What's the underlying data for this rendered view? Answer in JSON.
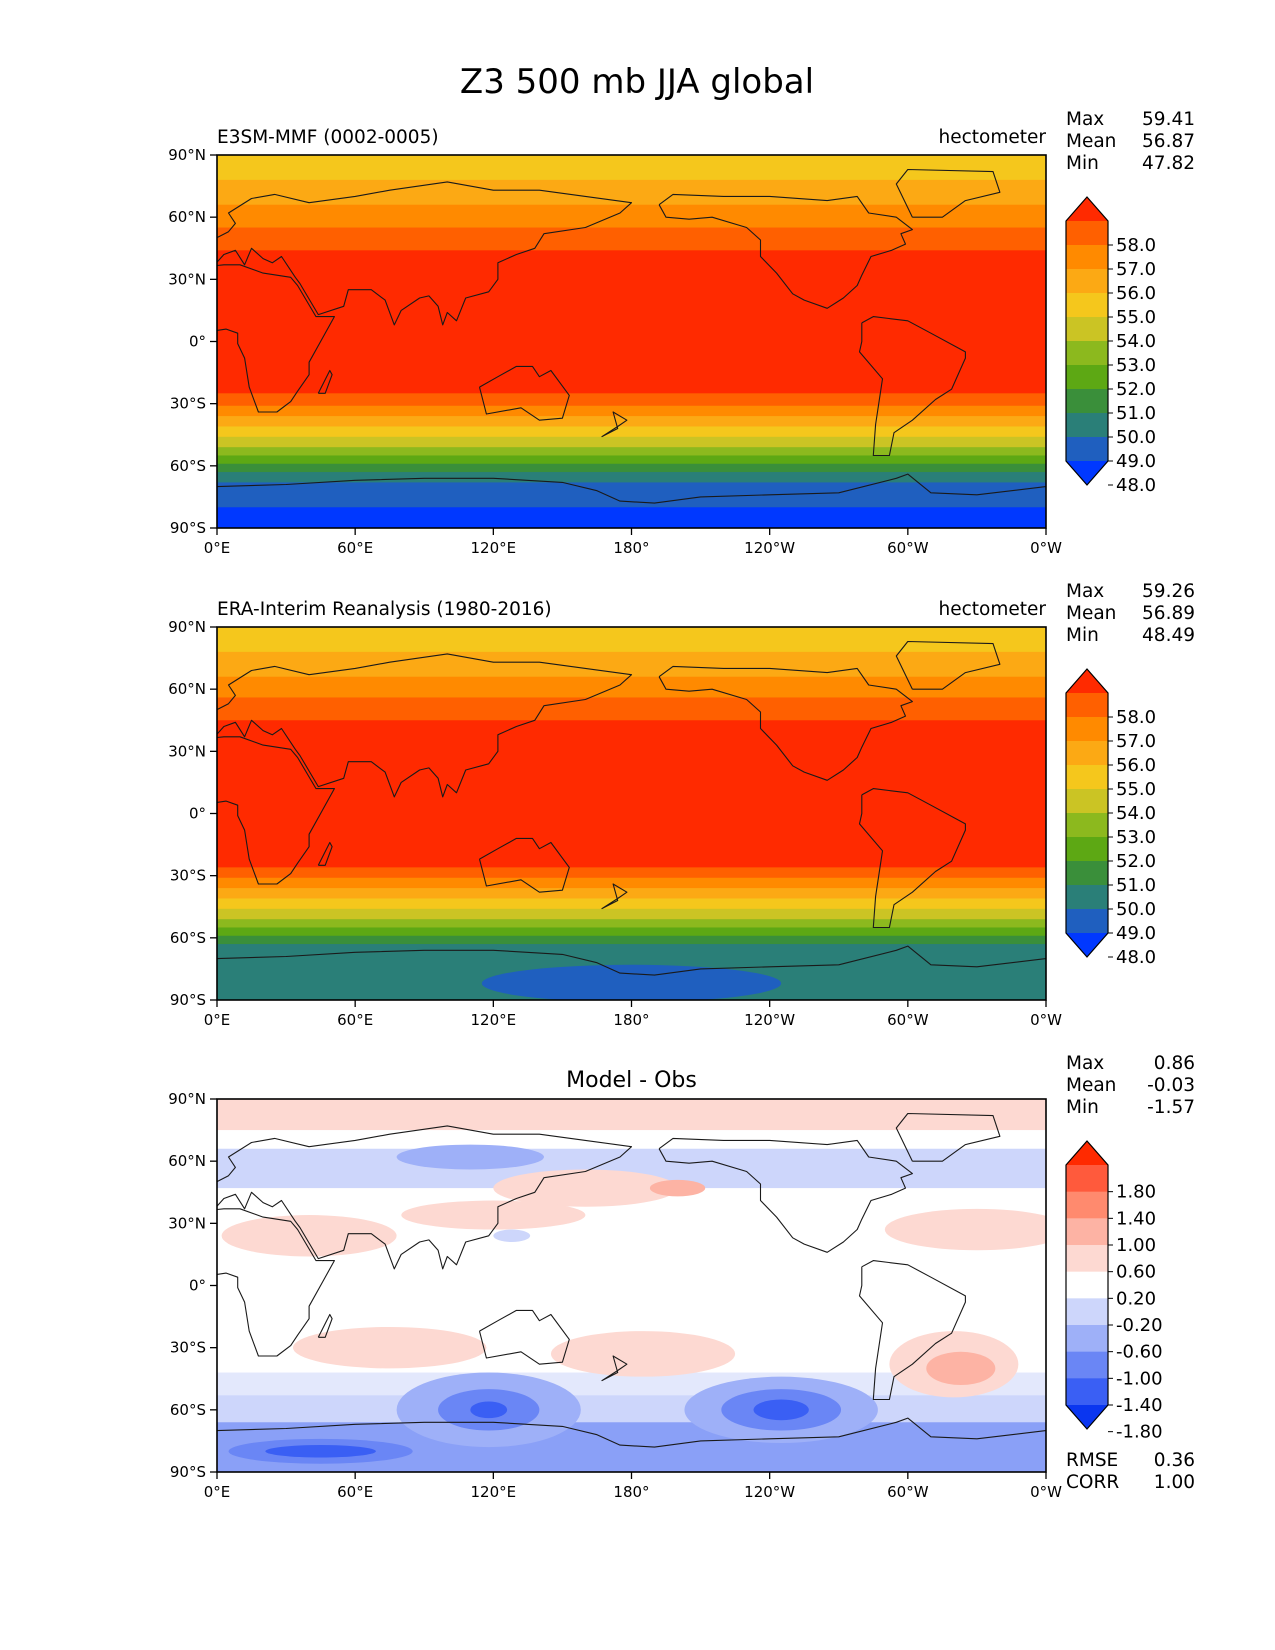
{
  "figure": {
    "title": "Z3 500 mb JJA global"
  },
  "panels": [
    {
      "name": "test",
      "left_title": "E3SM-MMF (0002-0005)",
      "center_title": "",
      "units": "hectometer",
      "stats": {
        "Max": "59.41",
        "Mean": "56.87",
        "Min": "47.82"
      },
      "stat_labels": [
        "Max",
        "Mean",
        "Min"
      ],
      "colorbar": {
        "labels": [
          "58.0",
          "57.0",
          "56.0",
          "55.0",
          "54.0",
          "53.0",
          "52.0",
          "51.0",
          "50.0",
          "49.0",
          "48.0"
        ],
        "colors_top_to_bottom": [
          "#ff2a00",
          "#ff6000",
          "#ff8a00",
          "#fca914",
          "#f5c71c",
          "#cbc424",
          "#8cb91e",
          "#5da814",
          "#3a8f3a",
          "#2a7f78",
          "#1f5fbf",
          "#0038ff"
        ]
      },
      "field": {
        "type": "zonal-band-contour",
        "lat_bands_north_to_south": [
          {
            "lat_from": 90,
            "lat_to": 78,
            "color": "#f5c71c"
          },
          {
            "lat_from": 78,
            "lat_to": 66,
            "color": "#fca914"
          },
          {
            "lat_from": 66,
            "lat_to": 55,
            "color": "#ff8a00"
          },
          {
            "lat_from": 55,
            "lat_to": 44,
            "color": "#ff6000"
          },
          {
            "lat_from": 44,
            "lat_to": -25,
            "color": "#ff2a00"
          },
          {
            "lat_from": -25,
            "lat_to": -31,
            "color": "#ff6000"
          },
          {
            "lat_from": -31,
            "lat_to": -36,
            "color": "#ff8a00"
          },
          {
            "lat_from": -36,
            "lat_to": -41,
            "color": "#fca914"
          },
          {
            "lat_from": -41,
            "lat_to": -46,
            "color": "#f5c71c"
          },
          {
            "lat_from": -46,
            "lat_to": -51,
            "color": "#cbc424"
          },
          {
            "lat_from": -51,
            "lat_to": -55,
            "color": "#8cb91e"
          },
          {
            "lat_from": -55,
            "lat_to": -59,
            "color": "#5da814"
          },
          {
            "lat_from": -59,
            "lat_to": -63,
            "color": "#3a8f3a"
          },
          {
            "lat_from": -63,
            "lat_to": -68,
            "color": "#2a7f78"
          },
          {
            "lat_from": -68,
            "lat_to": -80,
            "color": "#1f5fbf"
          },
          {
            "lat_from": -80,
            "lat_to": -90,
            "color": "#0038ff"
          }
        ]
      },
      "extra": []
    },
    {
      "name": "reference",
      "left_title": "ERA-Interim Reanalysis (1980-2016)",
      "center_title": "",
      "units": "hectometer",
      "stats": {
        "Max": "59.26",
        "Mean": "56.89",
        "Min": "48.49"
      },
      "stat_labels": [
        "Max",
        "Mean",
        "Min"
      ],
      "colorbar": {
        "labels": [
          "58.0",
          "57.0",
          "56.0",
          "55.0",
          "54.0",
          "53.0",
          "52.0",
          "51.0",
          "50.0",
          "49.0",
          "48.0"
        ],
        "colors_top_to_bottom": [
          "#ff2a00",
          "#ff6000",
          "#ff8a00",
          "#fca914",
          "#f5c71c",
          "#cbc424",
          "#8cb91e",
          "#5da814",
          "#3a8f3a",
          "#2a7f78",
          "#1f5fbf",
          "#0038ff"
        ]
      },
      "field": {
        "type": "zonal-band-contour",
        "lat_bands_north_to_south": [
          {
            "lat_from": 90,
            "lat_to": 78,
            "color": "#f5c71c"
          },
          {
            "lat_from": 78,
            "lat_to": 66,
            "color": "#fca914"
          },
          {
            "lat_from": 66,
            "lat_to": 56,
            "color": "#ff8a00"
          },
          {
            "lat_from": 56,
            "lat_to": 45,
            "color": "#ff6000"
          },
          {
            "lat_from": 45,
            "lat_to": -26,
            "color": "#ff2a00"
          },
          {
            "lat_from": -26,
            "lat_to": -31,
            "color": "#ff6000"
          },
          {
            "lat_from": -31,
            "lat_to": -36,
            "color": "#ff8a00"
          },
          {
            "lat_from": -36,
            "lat_to": -41,
            "color": "#fca914"
          },
          {
            "lat_from": -41,
            "lat_to": -46,
            "color": "#f5c71c"
          },
          {
            "lat_from": -46,
            "lat_to": -51,
            "color": "#cbc424"
          },
          {
            "lat_from": -51,
            "lat_to": -55,
            "color": "#8cb91e"
          },
          {
            "lat_from": -55,
            "lat_to": -59,
            "color": "#5da814"
          },
          {
            "lat_from": -59,
            "lat_to": -63,
            "color": "#3a8f3a"
          },
          {
            "lat_from": -63,
            "lat_to": -90,
            "color": "#2a7f78"
          }
        ]
      },
      "extra": [
        {
          "kind": "blob",
          "lon": 180,
          "lat": -82,
          "dlon": 65,
          "dlat": 9,
          "color": "#1f5fbf"
        }
      ]
    },
    {
      "name": "difference",
      "left_title": "",
      "center_title": "Model - Obs",
      "units": "",
      "stats": {
        "Max": "0.86",
        "Mean": "-0.03",
        "Min": "-1.57"
      },
      "stat_labels": [
        "Max",
        "Mean",
        "Min"
      ],
      "footer_labels": [
        "RMSE",
        "CORR"
      ],
      "footer": {
        "RMSE": "0.36",
        "CORR": "1.00"
      },
      "colorbar": {
        "labels": [
          "1.80",
          "1.40",
          "1.00",
          "0.60",
          "0.20",
          "-0.20",
          "-0.60",
          "-1.00",
          "-1.40",
          "-1.80"
        ],
        "colors_top_to_bottom": [
          "#ff2a00",
          "#ff5a3c",
          "#ff8a6e",
          "#fdb3a4",
          "#fdd9d2",
          "#ffffff",
          "#cdd6fb",
          "#9eb0f8",
          "#6a86f5",
          "#3a5ff4",
          "#0a36f0"
        ]
      },
      "field": {
        "type": "anomaly-blobs",
        "lat_bands_north_to_south": [
          {
            "lat_from": 90,
            "lat_to": 75,
            "color": "#fdd9d2"
          },
          {
            "lat_from": 75,
            "lat_to": 66,
            "color": "#ffffff"
          },
          {
            "lat_from": 66,
            "lat_to": 47,
            "color": "#cdd6fb"
          },
          {
            "lat_from": 47,
            "lat_to": -42,
            "color": "#ffffff"
          },
          {
            "lat_from": -42,
            "lat_to": -53,
            "color": "#e3e8fc"
          },
          {
            "lat_from": -53,
            "lat_to": -66,
            "color": "#cdd6fb"
          },
          {
            "lat_from": -66,
            "lat_to": -90,
            "color": "#8aa0f7"
          }
        ]
      },
      "extra": [
        {
          "kind": "blob",
          "lon": 110,
          "lat": 62,
          "dlon": 32,
          "dlat": 6,
          "color": "#9eb0f8"
        },
        {
          "kind": "blob",
          "lon": 160,
          "lat": 47,
          "dlon": 40,
          "dlat": 9,
          "color": "#fdd9d2"
        },
        {
          "kind": "blob",
          "lon": 200,
          "lat": 47,
          "dlon": 12,
          "dlat": 4,
          "color": "#fdb3a4"
        },
        {
          "kind": "blob",
          "lon": 40,
          "lat": 24,
          "dlon": 38,
          "dlat": 10,
          "color": "#fdd9d2"
        },
        {
          "kind": "blob",
          "lon": 120,
          "lat": 34,
          "dlon": 40,
          "dlat": 7,
          "color": "#fdd9d2"
        },
        {
          "kind": "blob",
          "lon": 128,
          "lat": 24,
          "dlon": 8,
          "dlat": 3,
          "color": "#cdd6fb"
        },
        {
          "kind": "blob",
          "lon": 330,
          "lat": 27,
          "dlon": 40,
          "dlat": 10,
          "color": "#fdd9d2"
        },
        {
          "kind": "blob",
          "lon": 75,
          "lat": -30,
          "dlon": 42,
          "dlat": 10,
          "color": "#fdd9d2"
        },
        {
          "kind": "blob",
          "lon": 185,
          "lat": -33,
          "dlon": 40,
          "dlat": 11,
          "color": "#fdd9d2"
        },
        {
          "kind": "blob",
          "lon": 320,
          "lat": -38,
          "dlon": 28,
          "dlat": 16,
          "color": "#fdd9d2"
        },
        {
          "kind": "blob",
          "lon": 323,
          "lat": -40,
          "dlon": 15,
          "dlat": 8,
          "color": "#fdb3a4"
        },
        {
          "kind": "blob",
          "lon": 118,
          "lat": -60,
          "dlon": 40,
          "dlat": 18,
          "color": "#9eb0f8"
        },
        {
          "kind": "blob",
          "lon": 118,
          "lat": -60,
          "dlon": 22,
          "dlat": 10,
          "color": "#6a86f5"
        },
        {
          "kind": "blob",
          "lon": 118,
          "lat": -60,
          "dlon": 8,
          "dlat": 4,
          "color": "#3a5ff4"
        },
        {
          "kind": "blob",
          "lon": 245,
          "lat": -60,
          "dlon": 42,
          "dlat": 16,
          "color": "#9eb0f8"
        },
        {
          "kind": "blob",
          "lon": 245,
          "lat": -60,
          "dlon": 26,
          "dlat": 10,
          "color": "#6a86f5"
        },
        {
          "kind": "blob",
          "lon": 245,
          "lat": -60,
          "dlon": 12,
          "dlat": 5,
          "color": "#3a5ff4"
        },
        {
          "kind": "blob",
          "lon": 45,
          "lat": -80,
          "dlon": 40,
          "dlat": 6,
          "color": "#6a86f5"
        },
        {
          "kind": "blob",
          "lon": 45,
          "lat": -80,
          "dlon": 24,
          "dlat": 3,
          "color": "#3a5ff4"
        }
      ]
    }
  ],
  "axes": {
    "lat_ticks": [
      "90°N",
      "60°N",
      "30°N",
      "0°",
      "30°S",
      "60°S",
      "90°S"
    ],
    "lat_values": [
      90,
      60,
      30,
      0,
      -30,
      -60,
      -90
    ],
    "lon_ticks": [
      "0°E",
      "60°E",
      "120°E",
      "180°",
      "120°W",
      "60°W",
      "0°W"
    ],
    "lon_values": [
      0,
      60,
      120,
      180,
      240,
      300,
      360
    ]
  },
  "coastlines": [
    {
      "name": "africa-europe",
      "points": [
        [
          -17,
          21
        ],
        [
          -13,
          28
        ],
        [
          -6,
          36
        ],
        [
          3,
          37
        ],
        [
          10,
          37
        ],
        [
          20,
          33
        ],
        [
          32,
          31
        ],
        [
          35,
          27
        ],
        [
          43,
          12
        ],
        [
          51,
          12
        ],
        [
          46,
          2
        ],
        [
          40,
          -10
        ],
        [
          40,
          -16
        ],
        [
          35,
          -24
        ],
        [
          32,
          -29
        ],
        [
          26,
          -34
        ],
        [
          18,
          -34
        ],
        [
          14,
          -22
        ],
        [
          12,
          -8
        ],
        [
          9,
          -1
        ],
        [
          9,
          4
        ],
        [
          4,
          6
        ],
        [
          -8,
          4
        ],
        [
          -15,
          11
        ],
        [
          -17,
          21
        ]
      ]
    },
    {
      "name": "eurasia",
      "points": [
        [
          -10,
          36
        ],
        [
          -9,
          43
        ],
        [
          -2,
          49
        ],
        [
          5,
          53
        ],
        [
          8,
          57
        ],
        [
          5,
          62
        ],
        [
          15,
          69
        ],
        [
          25,
          71
        ],
        [
          40,
          67
        ],
        [
          60,
          70
        ],
        [
          75,
          73
        ],
        [
          100,
          77
        ],
        [
          120,
          73
        ],
        [
          140,
          73
        ],
        [
          160,
          70
        ],
        [
          180,
          67
        ],
        [
          175,
          62
        ],
        [
          160,
          55
        ],
        [
          142,
          52
        ],
        [
          138,
          45
        ],
        [
          130,
          42
        ],
        [
          122,
          38
        ],
        [
          122,
          30
        ],
        [
          118,
          24
        ],
        [
          108,
          21
        ],
        [
          104,
          10
        ],
        [
          100,
          14
        ],
        [
          98,
          8
        ],
        [
          96,
          17
        ],
        [
          92,
          22
        ],
        [
          88,
          21
        ],
        [
          80,
          15
        ],
        [
          77,
          8
        ],
        [
          73,
          20
        ],
        [
          67,
          25
        ],
        [
          57,
          25
        ],
        [
          55,
          17
        ],
        [
          44,
          13
        ],
        [
          36,
          28
        ],
        [
          34,
          31
        ],
        [
          28,
          41
        ],
        [
          24,
          38
        ],
        [
          20,
          40
        ],
        [
          15,
          45
        ],
        [
          12,
          37
        ],
        [
          8,
          44
        ],
        [
          3,
          42
        ],
        [
          -1,
          37
        ],
        [
          -10,
          36
        ]
      ]
    },
    {
      "name": "madagascar",
      "points": [
        [
          44,
          -25
        ],
        [
          49,
          -14
        ],
        [
          50,
          -16
        ],
        [
          47,
          -25
        ],
        [
          44,
          -25
        ]
      ]
    },
    {
      "name": "australia",
      "points": [
        [
          114,
          -22
        ],
        [
          122,
          -17
        ],
        [
          130,
          -12
        ],
        [
          137,
          -12
        ],
        [
          140,
          -17
        ],
        [
          145,
          -14
        ],
        [
          153,
          -26
        ],
        [
          150,
          -37
        ],
        [
          140,
          -38
        ],
        [
          132,
          -32
        ],
        [
          117,
          -35
        ],
        [
          114,
          -22
        ]
      ]
    },
    {
      "name": "new-zealand",
      "points": [
        [
          167,
          -46
        ],
        [
          174,
          -41
        ],
        [
          178,
          -38
        ],
        [
          172,
          -34
        ],
        [
          174,
          -42
        ],
        [
          167,
          -46
        ]
      ]
    },
    {
      "name": "north-america",
      "points": [
        [
          192,
          66
        ],
        [
          195,
          60
        ],
        [
          205,
          59
        ],
        [
          215,
          60
        ],
        [
          230,
          55
        ],
        [
          236,
          49
        ],
        [
          236,
          41
        ],
        [
          243,
          33
        ],
        [
          250,
          23
        ],
        [
          255,
          20
        ],
        [
          265,
          16
        ],
        [
          272,
          21
        ],
        [
          278,
          27
        ],
        [
          280,
          32
        ],
        [
          284,
          41
        ],
        [
          293,
          44
        ],
        [
          299,
          47
        ],
        [
          297,
          52
        ],
        [
          302,
          54
        ],
        [
          295,
          60
        ],
        [
          283,
          62
        ],
        [
          278,
          70
        ],
        [
          265,
          68
        ],
        [
          240,
          70
        ],
        [
          220,
          70
        ],
        [
          198,
          71
        ],
        [
          192,
          66
        ]
      ]
    },
    {
      "name": "south-america",
      "points": [
        [
          280,
          9
        ],
        [
          285,
          12
        ],
        [
          300,
          10
        ],
        [
          310,
          4
        ],
        [
          325,
          -5
        ],
        [
          325,
          -8
        ],
        [
          319,
          -23
        ],
        [
          312,
          -28
        ],
        [
          302,
          -38
        ],
        [
          294,
          -44
        ],
        [
          292,
          -55
        ],
        [
          285,
          -55
        ],
        [
          286,
          -40
        ],
        [
          289,
          -18
        ],
        [
          279,
          -5
        ],
        [
          280,
          0
        ],
        [
          280,
          9
        ]
      ]
    },
    {
      "name": "greenland",
      "points": [
        [
          302,
          60
        ],
        [
          315,
          60
        ],
        [
          325,
          68
        ],
        [
          340,
          72
        ],
        [
          337,
          82
        ],
        [
          300,
          83
        ],
        [
          295,
          76
        ],
        [
          302,
          60
        ]
      ]
    },
    {
      "name": "antarctica",
      "points": [
        [
          0,
          -70
        ],
        [
          30,
          -69
        ],
        [
          60,
          -67
        ],
        [
          90,
          -66
        ],
        [
          120,
          -66
        ],
        [
          150,
          -68
        ],
        [
          165,
          -72
        ],
        [
          175,
          -77
        ],
        [
          190,
          -78
        ],
        [
          210,
          -75
        ],
        [
          240,
          -74
        ],
        [
          270,
          -73
        ],
        [
          295,
          -66
        ],
        [
          300,
          -64
        ],
        [
          310,
          -73
        ],
        [
          330,
          -74
        ],
        [
          360,
          -70
        ]
      ]
    }
  ]
}
